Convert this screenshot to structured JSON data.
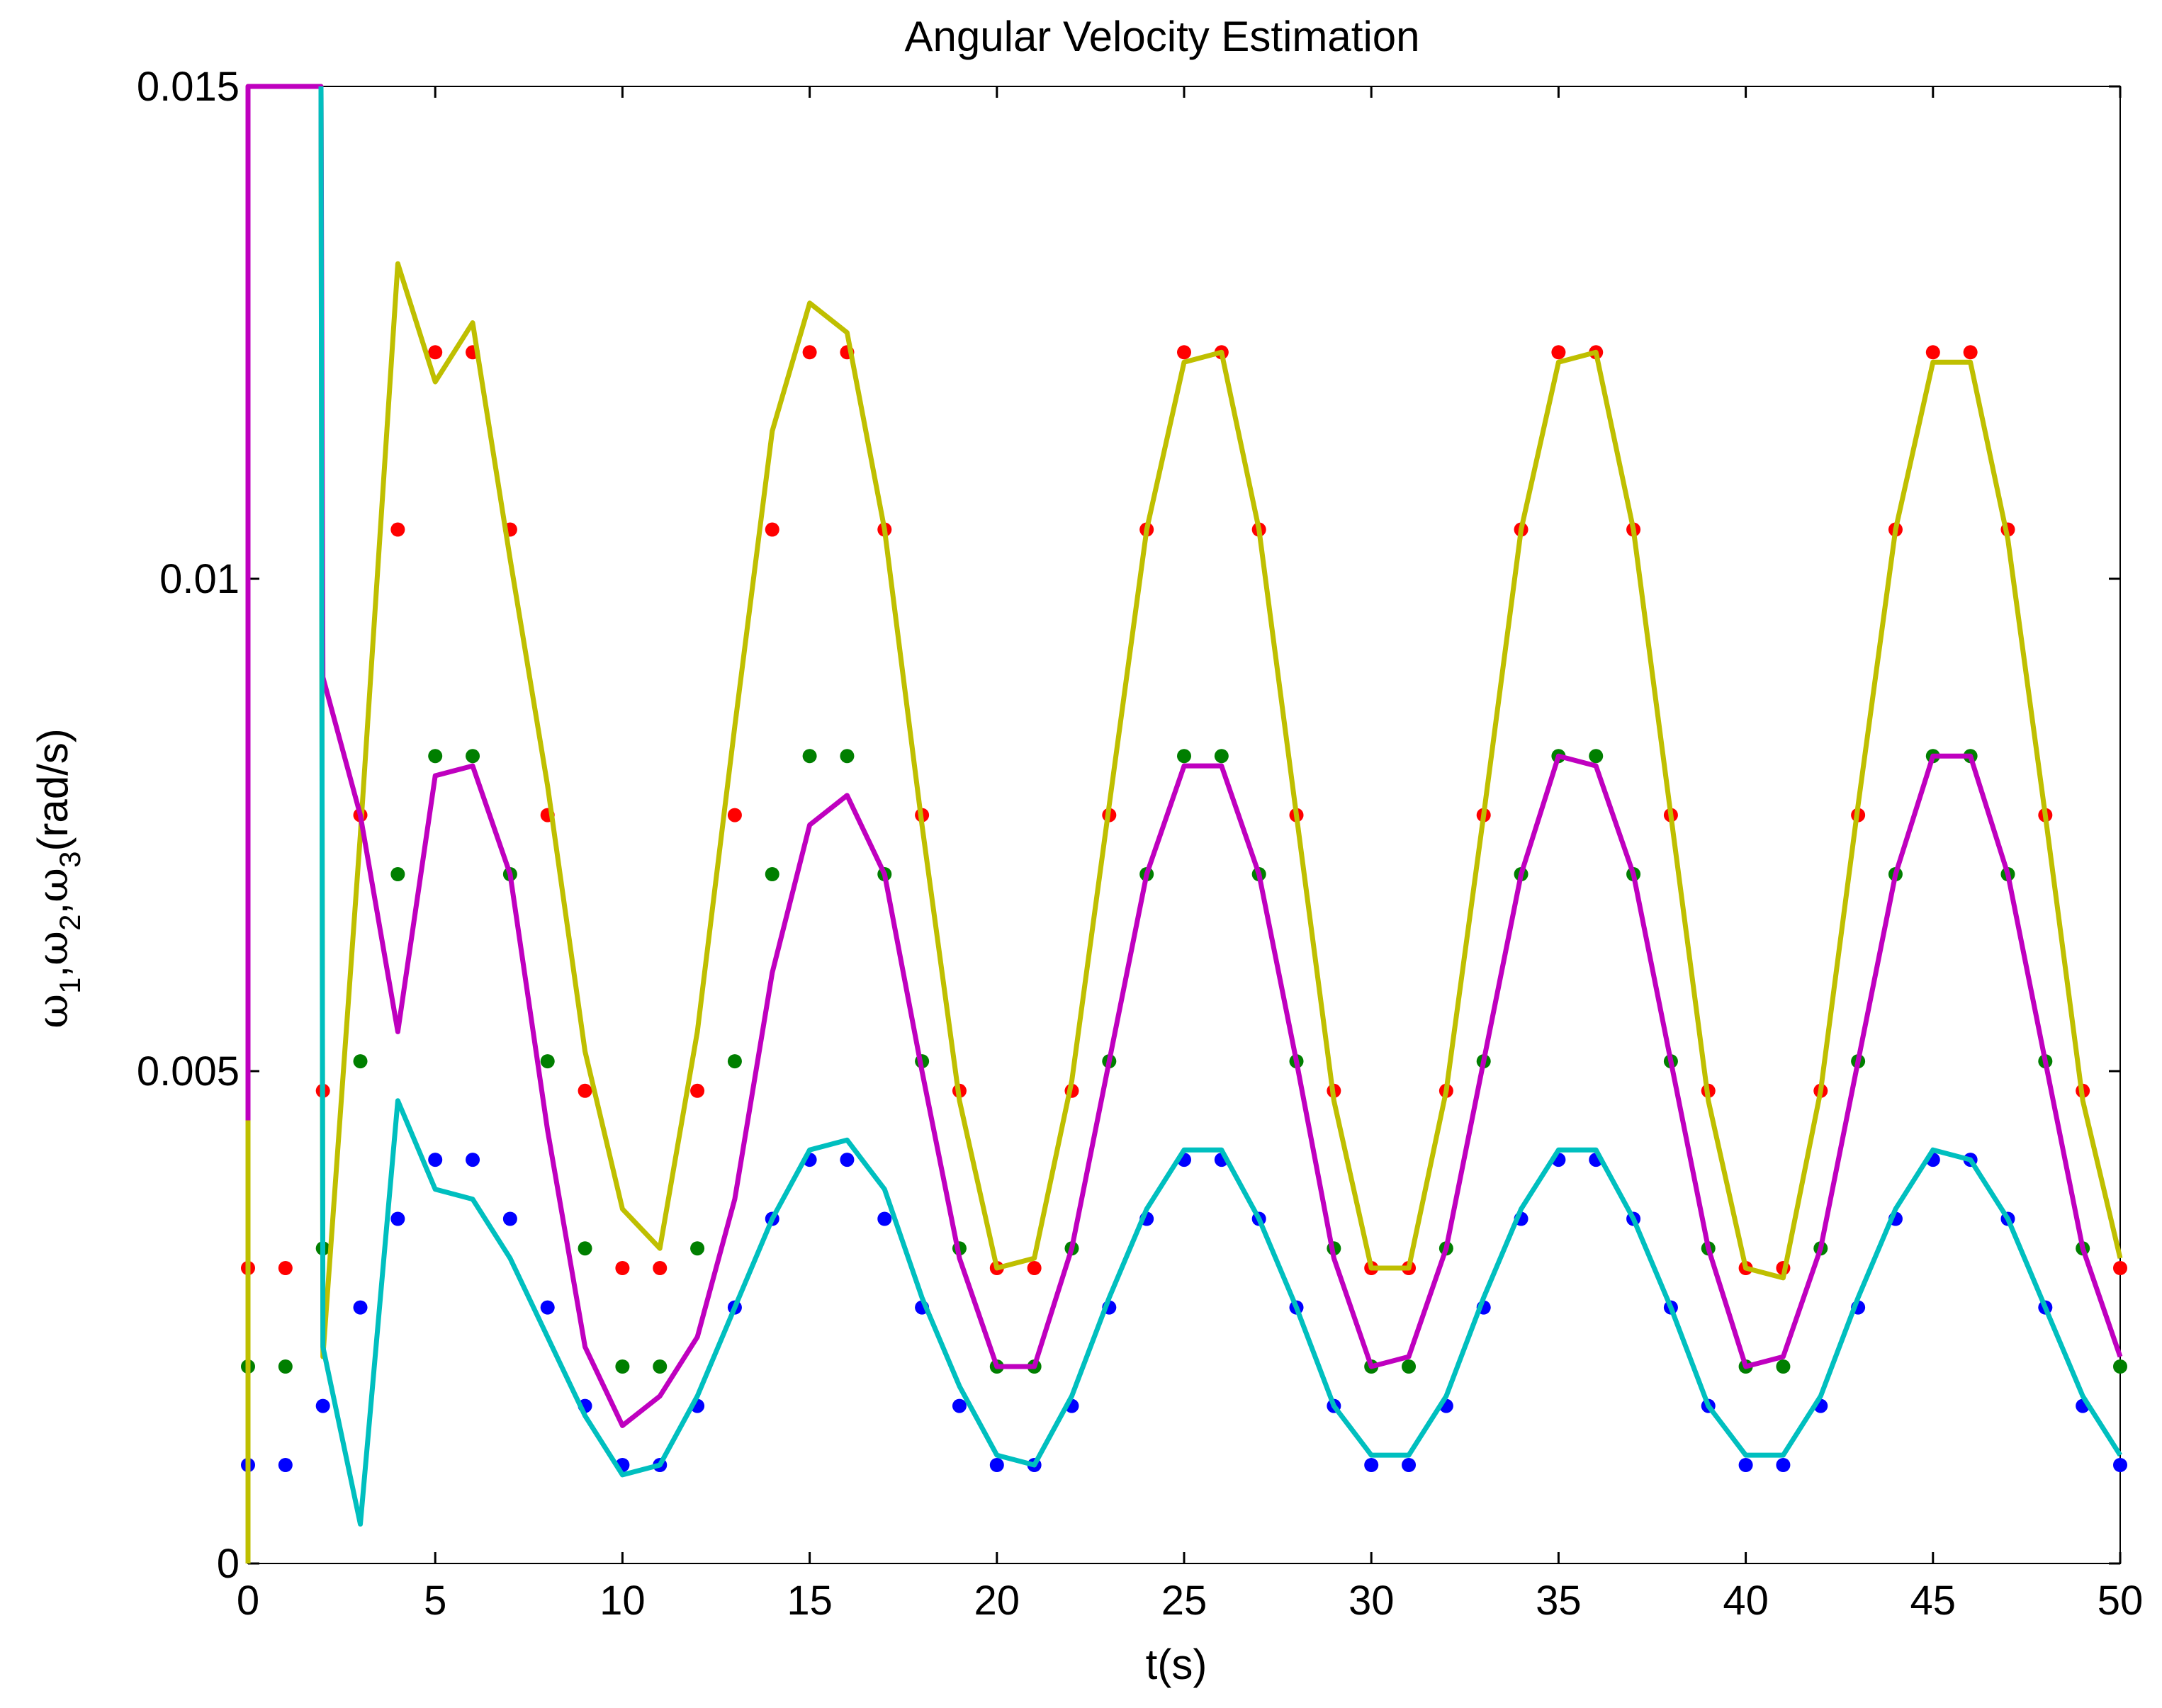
{
  "chart_data": {
    "type": "line",
    "title": "Angular Velocity Estimation",
    "xlabel": "t(s)",
    "ylabel": {
      "w1": "ω",
      "sub1": "1",
      "comma1": ",",
      "w2": "ω",
      "sub2": "2",
      "comma2": ",",
      "w3": "ω",
      "sub3": "3",
      "unit": "(rad/s)"
    },
    "xlim": [
      0,
      50
    ],
    "ylim": [
      0,
      0.015
    ],
    "xticks": [
      0,
      5,
      10,
      15,
      20,
      25,
      30,
      35,
      40,
      45,
      50
    ],
    "xtick_labels": [
      "0",
      "5",
      "10",
      "15",
      "20",
      "25",
      "30",
      "35",
      "40",
      "45",
      "50"
    ],
    "yticks": [
      0,
      0.005,
      0.01,
      0.015
    ],
    "ytick_labels": [
      "0",
      "0.005",
      "0.01",
      "0.015"
    ],
    "grid": false,
    "scatter_series": [
      {
        "name": "true_red",
        "color": "#ff0000",
        "x": [
          0,
          1,
          2,
          3,
          4,
          5,
          6,
          7,
          8,
          9,
          10,
          11,
          12,
          13,
          14,
          15,
          16,
          17,
          18,
          19,
          20,
          21,
          22,
          23,
          24,
          25,
          26,
          27,
          28,
          29,
          30,
          31,
          32,
          33,
          34,
          35,
          36,
          37,
          38,
          39,
          40,
          41,
          42,
          43,
          44,
          45,
          46,
          47,
          48,
          49,
          50
        ],
        "y": [
          0.003,
          0.003,
          0.0048,
          0.0076,
          0.0105,
          0.0123,
          0.0123,
          0.0105,
          0.0076,
          0.0048,
          0.003,
          0.003,
          0.0048,
          0.0076,
          0.0105,
          0.0123,
          0.0123,
          0.0105,
          0.0076,
          0.0048,
          0.003,
          0.003,
          0.0048,
          0.0076,
          0.0105,
          0.0123,
          0.0123,
          0.0105,
          0.0076,
          0.0048,
          0.003,
          0.003,
          0.0048,
          0.0076,
          0.0105,
          0.0123,
          0.0123,
          0.0105,
          0.0076,
          0.0048,
          0.003,
          0.003,
          0.0048,
          0.0076,
          0.0105,
          0.0123,
          0.0123,
          0.0105,
          0.0076,
          0.0048,
          0.003
        ]
      },
      {
        "name": "true_green",
        "color": "#007f00",
        "x": [
          0,
          1,
          2,
          3,
          4,
          5,
          6,
          7,
          8,
          9,
          10,
          11,
          12,
          13,
          14,
          15,
          16,
          17,
          18,
          19,
          20,
          21,
          22,
          23,
          24,
          25,
          26,
          27,
          28,
          29,
          30,
          31,
          32,
          33,
          34,
          35,
          36,
          37,
          38,
          39,
          40,
          41,
          42,
          43,
          44,
          45,
          46,
          47,
          48,
          49,
          50
        ],
        "y": [
          0.002,
          0.002,
          0.0032,
          0.0051,
          0.007,
          0.0082,
          0.0082,
          0.007,
          0.0051,
          0.0032,
          0.002,
          0.002,
          0.0032,
          0.0051,
          0.007,
          0.0082,
          0.0082,
          0.007,
          0.0051,
          0.0032,
          0.002,
          0.002,
          0.0032,
          0.0051,
          0.007,
          0.0082,
          0.0082,
          0.007,
          0.0051,
          0.0032,
          0.002,
          0.002,
          0.0032,
          0.0051,
          0.007,
          0.0082,
          0.0082,
          0.007,
          0.0051,
          0.0032,
          0.002,
          0.002,
          0.0032,
          0.0051,
          0.007,
          0.0082,
          0.0082,
          0.007,
          0.0051,
          0.0032,
          0.002
        ]
      },
      {
        "name": "true_blue",
        "color": "#0000ff",
        "x": [
          0,
          1,
          2,
          3,
          4,
          5,
          6,
          7,
          8,
          9,
          10,
          11,
          12,
          13,
          14,
          15,
          16,
          17,
          18,
          19,
          20,
          21,
          22,
          23,
          24,
          25,
          26,
          27,
          28,
          29,
          30,
          31,
          32,
          33,
          34,
          35,
          36,
          37,
          38,
          39,
          40,
          41,
          42,
          43,
          44,
          45,
          46,
          47,
          48,
          49,
          50
        ],
        "y": [
          0.001,
          0.001,
          0.0016,
          0.0026,
          0.0035,
          0.0041,
          0.0041,
          0.0035,
          0.0026,
          0.0016,
          0.001,
          0.001,
          0.0016,
          0.0026,
          0.0035,
          0.0041,
          0.0041,
          0.0035,
          0.0026,
          0.0016,
          0.001,
          0.001,
          0.0016,
          0.0026,
          0.0035,
          0.0041,
          0.0041,
          0.0035,
          0.0026,
          0.0016,
          0.001,
          0.001,
          0.0016,
          0.0026,
          0.0035,
          0.0041,
          0.0041,
          0.0035,
          0.0026,
          0.0016,
          0.001,
          0.001,
          0.0016,
          0.0026,
          0.0035,
          0.0041,
          0.0041,
          0.0035,
          0.0026,
          0.0016,
          0.001
        ]
      }
    ],
    "line_series": [
      {
        "name": "estimate_yellow",
        "color": "#bfbf00",
        "x": [
          0,
          0,
          0.02,
          0.05,
          1.95,
          2,
          3,
          4,
          5,
          6,
          7,
          8,
          9,
          10,
          11,
          12,
          13,
          14,
          15,
          16,
          17,
          18,
          19,
          20,
          21,
          22,
          23,
          24,
          25,
          26,
          27,
          28,
          29,
          30,
          31,
          32,
          33,
          34,
          35,
          36,
          37,
          38,
          39,
          40,
          41,
          42,
          43,
          44,
          45,
          46,
          47,
          48,
          49,
          50
        ],
        "y": [
          0.0,
          0.015,
          0.015,
          0.015,
          0.015,
          0.0021,
          0.0074,
          0.0132,
          0.012,
          0.0126,
          0.0102,
          0.0079,
          0.0052,
          0.0036,
          0.0032,
          0.0054,
          0.0085,
          0.0115,
          0.0128,
          0.0125,
          0.0105,
          0.0075,
          0.0047,
          0.003,
          0.0031,
          0.0049,
          0.0077,
          0.0105,
          0.0122,
          0.0123,
          0.0105,
          0.0076,
          0.0047,
          0.003,
          0.003,
          0.0048,
          0.0076,
          0.0105,
          0.0122,
          0.0123,
          0.0105,
          0.0076,
          0.0047,
          0.003,
          0.0029,
          0.0048,
          0.0077,
          0.0105,
          0.0122,
          0.0122,
          0.0104,
          0.0076,
          0.0047,
          0.0031
        ]
      },
      {
        "name": "estimate_magenta",
        "color": "#bf00bf",
        "x": [
          0,
          0,
          0.02,
          0.05,
          1.95,
          2,
          3,
          4,
          5,
          6,
          7,
          8,
          9,
          10,
          11,
          12,
          13,
          14,
          15,
          16,
          17,
          18,
          19,
          20,
          21,
          22,
          23,
          24,
          25,
          26,
          27,
          28,
          29,
          30,
          31,
          32,
          33,
          34,
          35,
          36,
          37,
          38,
          39,
          40,
          41,
          42,
          43,
          44,
          45,
          46,
          47,
          48,
          49,
          50
        ],
        "y": [
          0.0045,
          0.015,
          0.015,
          0.015,
          0.015,
          0.009,
          0.0076,
          0.0054,
          0.008,
          0.0081,
          0.007,
          0.0044,
          0.0022,
          0.0014,
          0.0017,
          0.0023,
          0.0037,
          0.006,
          0.0075,
          0.0078,
          0.007,
          0.005,
          0.0031,
          0.002,
          0.002,
          0.0032,
          0.0051,
          0.007,
          0.0081,
          0.0081,
          0.007,
          0.0051,
          0.0031,
          0.002,
          0.0021,
          0.0032,
          0.0051,
          0.007,
          0.0082,
          0.0081,
          0.007,
          0.0051,
          0.0032,
          0.002,
          0.0021,
          0.0032,
          0.0051,
          0.007,
          0.0082,
          0.0082,
          0.007,
          0.0051,
          0.0032,
          0.0021
        ]
      },
      {
        "name": "estimate_cyan",
        "color": "#00bfbf",
        "x": [
          1.95,
          2,
          3,
          4,
          5,
          6,
          7,
          8,
          9,
          10,
          11,
          12,
          13,
          14,
          15,
          16,
          17,
          18,
          19,
          20,
          21,
          22,
          23,
          24,
          25,
          26,
          27,
          28,
          29,
          30,
          31,
          32,
          33,
          34,
          35,
          36,
          37,
          38,
          39,
          40,
          41,
          42,
          43,
          44,
          45,
          46,
          47,
          48,
          49,
          50
        ],
        "y": [
          0.015,
          0.0022,
          0.0004,
          0.0047,
          0.0038,
          0.0037,
          0.0031,
          0.0023,
          0.0015,
          0.0009,
          0.001,
          0.0017,
          0.0026,
          0.0035,
          0.0042,
          0.0043,
          0.0038,
          0.0027,
          0.0018,
          0.0011,
          0.001,
          0.0017,
          0.0027,
          0.0036,
          0.0042,
          0.0042,
          0.0035,
          0.0026,
          0.0016,
          0.0011,
          0.0011,
          0.0017,
          0.0027,
          0.0036,
          0.0042,
          0.0042,
          0.0035,
          0.0026,
          0.0016,
          0.0011,
          0.0011,
          0.0017,
          0.0027,
          0.0036,
          0.0042,
          0.0041,
          0.0035,
          0.0026,
          0.0017,
          0.0011
        ]
      }
    ]
  }
}
